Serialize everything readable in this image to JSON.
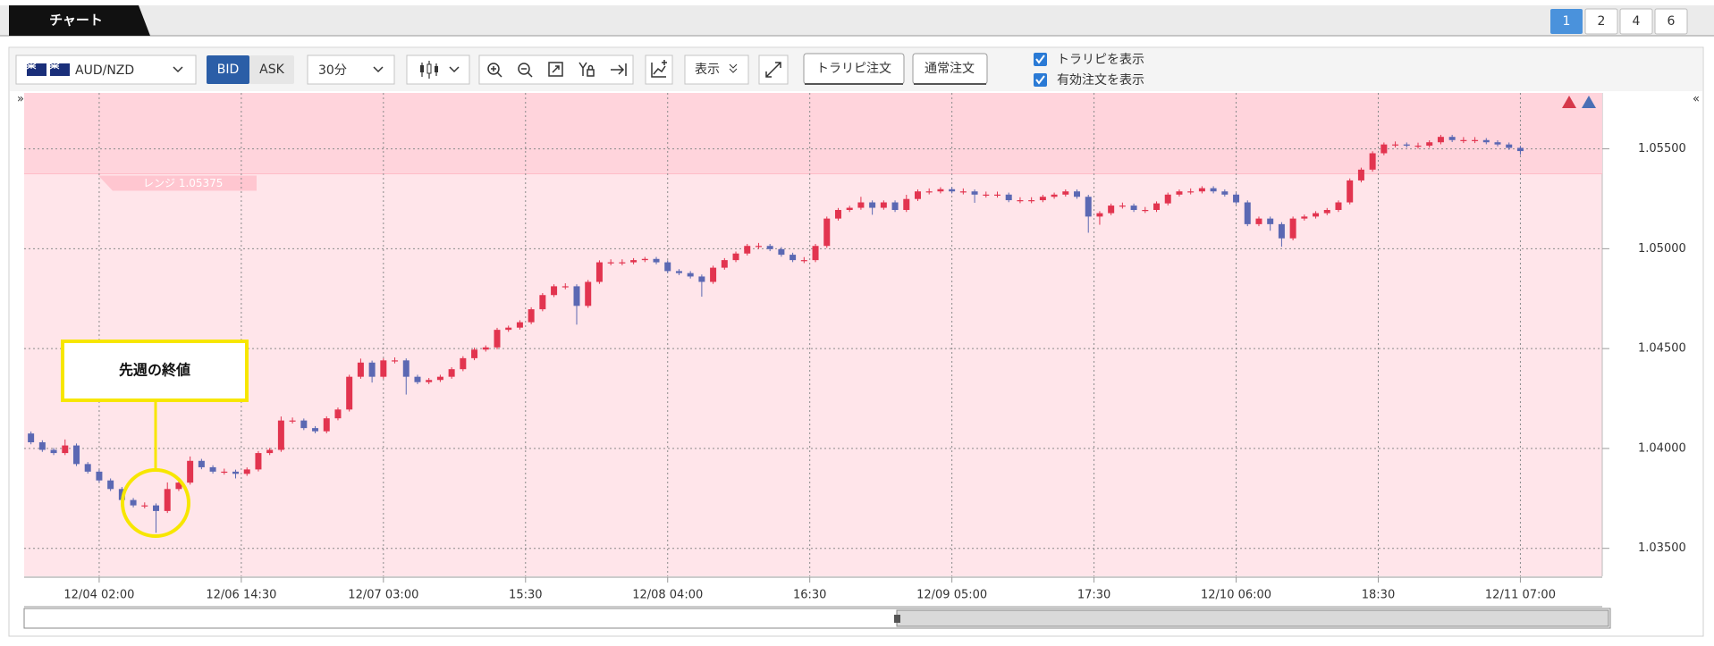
{
  "tabs": {
    "active": "チャート",
    "pages": [
      "1",
      "2",
      "4",
      "6"
    ]
  },
  "toolbar": {
    "symbol": "AUD/NZD",
    "bid": "BID",
    "ask": "ASK",
    "timeframe": "30分",
    "display": "表示",
    "buttons": [
      "トラリピ注文",
      "通常注文"
    ],
    "checkboxes": [
      "トラリピを表示",
      "有効注文を表示"
    ]
  },
  "chart_data": {
    "type": "candlestick",
    "x": [
      -6,
      -5,
      -4,
      -3,
      -2,
      -1,
      0,
      1,
      2,
      3,
      4,
      5,
      6,
      7,
      8,
      9,
      10,
      11,
      12,
      13,
      14,
      15,
      16,
      17,
      18,
      19,
      20,
      21,
      22,
      23,
      24,
      25,
      26,
      27,
      28,
      29,
      30,
      31,
      32,
      33,
      34,
      35,
      36,
      37,
      38,
      39,
      40,
      41,
      42,
      43,
      44,
      45,
      46,
      47,
      48,
      49,
      50,
      51,
      52,
      53,
      54,
      55,
      56,
      57,
      58,
      59,
      60,
      61,
      62,
      63,
      64,
      65,
      66,
      67,
      68,
      69,
      70,
      71,
      72,
      73,
      74,
      75,
      76,
      77,
      78,
      79,
      80,
      81,
      82,
      83,
      84,
      85,
      86,
      87,
      88,
      89,
      90,
      91,
      92,
      93,
      94,
      95,
      96,
      97,
      98,
      99,
      100,
      101,
      102,
      103,
      104,
      105,
      106,
      107,
      108,
      109,
      110,
      111,
      112,
      113,
      114,
      115,
      116,
      117,
      118,
      119,
      120,
      121,
      122,
      123,
      124,
      125
    ],
    "open": [
      1.04075,
      1.04031,
      1.03993,
      1.03977,
      1.04015,
      1.03922,
      1.03884,
      1.0384,
      1.03797,
      1.03742,
      1.03715,
      1.03715,
      1.03687,
      1.03797,
      1.03829,
      1.03938,
      1.03906,
      1.03884,
      1.03884,
      1.03873,
      1.03895,
      1.03977,
      1.03993,
      1.0414,
      1.0414,
      1.04102,
      1.04086,
      1.04151,
      1.04195,
      1.04359,
      1.0443,
      1.04359,
      1.04441,
      1.04441,
      1.04359,
      1.04332,
      1.04343,
      1.04359,
      1.04397,
      1.04452,
      1.04495,
      1.04506,
      1.04594,
      1.04605,
      1.04632,
      1.04697,
      1.04768,
      1.04812,
      1.04812,
      1.04714,
      1.04834,
      1.04932,
      1.04932,
      1.04932,
      1.04943,
      1.04949,
      1.04932,
      1.04888,
      1.04878,
      1.04861,
      1.04834,
      1.04905,
      1.04943,
      1.04976,
      1.05014,
      1.05014,
      1.04998,
      1.0497,
      1.04943,
      1.04943,
      1.05014,
      1.05151,
      1.05194,
      1.05205,
      1.05232,
      1.05205,
      1.05232,
      1.05194,
      1.05249,
      1.05287,
      1.05287,
      1.05298,
      1.05287,
      1.05287,
      1.05271,
      1.05271,
      1.05271,
      1.05243,
      1.05243,
      1.05243,
      1.0526,
      1.05271,
      1.05287,
      1.0526,
      1.05161,
      1.05178,
      1.05216,
      1.05216,
      1.05194,
      1.05194,
      1.05227,
      1.05271,
      1.05287,
      1.05287,
      1.05303,
      1.05287,
      1.05271,
      1.05232,
      1.05123,
      1.05151,
      1.05123,
      1.05052,
      1.05151,
      1.05161,
      1.05178,
      1.05194,
      1.05232,
      1.05342,
      1.05396,
      1.05478,
      1.05522,
      1.05522,
      1.05516,
      1.05516,
      1.05533,
      1.0556,
      1.05544,
      1.05544,
      1.05544,
      1.05533,
      1.05522,
      1.05505
    ],
    "high": [
      1.04085,
      1.04041,
      1.04003,
      1.04045,
      1.04025,
      1.03932,
      1.03894,
      1.0385,
      1.03807,
      1.03752,
      1.0373,
      1.03725,
      1.0383,
      1.03839,
      1.0396,
      1.03948,
      1.03916,
      1.03899,
      1.03894,
      1.03905,
      1.03987,
      1.04003,
      1.0416,
      1.04155,
      1.0415,
      1.04112,
      1.04161,
      1.04205,
      1.04369,
      1.0445,
      1.0444,
      1.04451,
      1.04456,
      1.04451,
      1.04369,
      1.04353,
      1.04369,
      1.04407,
      1.04462,
      1.04505,
      1.04516,
      1.04604,
      1.04615,
      1.04642,
      1.04707,
      1.04778,
      1.04822,
      1.04827,
      1.04822,
      1.04844,
      1.04942,
      1.04947,
      1.04947,
      1.04953,
      1.04959,
      1.04959,
      1.04942,
      1.04898,
      1.04888,
      1.04871,
      1.04915,
      1.04953,
      1.04986,
      1.05024,
      1.05029,
      1.05024,
      1.05008,
      1.0498,
      1.04958,
      1.05024,
      1.05161,
      1.05204,
      1.05215,
      1.0526,
      1.05242,
      1.05242,
      1.05242,
      1.0527,
      1.05297,
      1.05302,
      1.05308,
      1.05308,
      1.05302,
      1.05297,
      1.05286,
      1.05286,
      1.05281,
      1.05258,
      1.05258,
      1.0527,
      1.05281,
      1.05297,
      1.05297,
      1.0527,
      1.05188,
      1.05226,
      1.05231,
      1.05226,
      1.05209,
      1.05237,
      1.05281,
      1.05297,
      1.05302,
      1.05313,
      1.05313,
      1.05297,
      1.05281,
      1.05242,
      1.05161,
      1.05161,
      1.05133,
      1.05161,
      1.05171,
      1.05188,
      1.05204,
      1.05242,
      1.05352,
      1.05406,
      1.05488,
      1.05532,
      1.05537,
      1.05532,
      1.05531,
      1.05543,
      1.0557,
      1.0557,
      1.05559,
      1.05559,
      1.05554,
      1.05543,
      1.05532,
      1.05515
    ],
    "low": [
      1.04021,
      1.03983,
      1.03967,
      1.03967,
      1.03912,
      1.03874,
      1.0383,
      1.03787,
      1.03732,
      1.03705,
      1.037,
      1.03578,
      1.03677,
      1.03787,
      1.03819,
      1.03896,
      1.03874,
      1.03869,
      1.0385,
      1.03863,
      1.03885,
      1.03967,
      1.03983,
      1.04125,
      1.04092,
      1.04076,
      1.04076,
      1.04141,
      1.04185,
      1.04349,
      1.0433,
      1.04349,
      1.04426,
      1.0427,
      1.04322,
      1.04322,
      1.04333,
      1.04349,
      1.04387,
      1.04442,
      1.04485,
      1.04496,
      1.04584,
      1.04595,
      1.04622,
      1.04687,
      1.04758,
      1.04797,
      1.0462,
      1.04704,
      1.04824,
      1.04917,
      1.04917,
      1.04922,
      1.04933,
      1.04922,
      1.04878,
      1.04868,
      1.04851,
      1.0476,
      1.04824,
      1.04895,
      1.04933,
      1.04966,
      1.04999,
      1.04988,
      1.0496,
      1.04933,
      1.04928,
      1.04933,
      1.05004,
      1.05141,
      1.05184,
      1.05195,
      1.0517,
      1.05195,
      1.05184,
      1.05184,
      1.05239,
      1.05272,
      1.05277,
      1.05277,
      1.05272,
      1.0523,
      1.05256,
      1.05256,
      1.05233,
      1.05228,
      1.05228,
      1.05233,
      1.0525,
      1.05261,
      1.0525,
      1.0508,
      1.0512,
      1.05168,
      1.05201,
      1.05184,
      1.05179,
      1.05184,
      1.05217,
      1.05261,
      1.05272,
      1.05277,
      1.05277,
      1.05261,
      1.05222,
      1.05113,
      1.05113,
      1.0509,
      1.0501,
      1.05042,
      1.05141,
      1.05151,
      1.05168,
      1.05184,
      1.05222,
      1.05332,
      1.05386,
      1.05468,
      1.05507,
      1.05506,
      1.05501,
      1.05506,
      1.05523,
      1.05534,
      1.05529,
      1.05529,
      1.05523,
      1.05512,
      1.05495,
      1.0547
    ],
    "close": [
      1.04031,
      1.03993,
      1.03977,
      1.04015,
      1.03922,
      1.03884,
      1.0384,
      1.03797,
      1.03742,
      1.03715,
      1.03715,
      1.03687,
      1.03797,
      1.03829,
      1.03938,
      1.03906,
      1.03884,
      1.03884,
      1.03873,
      1.03895,
      1.03977,
      1.03993,
      1.0414,
      1.0414,
      1.04102,
      1.04086,
      1.04151,
      1.04195,
      1.04359,
      1.0443,
      1.04359,
      1.04441,
      1.04441,
      1.04359,
      1.04332,
      1.04343,
      1.04359,
      1.04397,
      1.04452,
      1.04495,
      1.04506,
      1.04594,
      1.04605,
      1.04632,
      1.04697,
      1.04768,
      1.04812,
      1.04812,
      1.04714,
      1.04834,
      1.04932,
      1.04932,
      1.04932,
      1.04943,
      1.04949,
      1.04932,
      1.04888,
      1.04878,
      1.04861,
      1.04834,
      1.04905,
      1.04943,
      1.04976,
      1.05014,
      1.05014,
      1.04998,
      1.0497,
      1.04943,
      1.04943,
      1.05014,
      1.05151,
      1.05194,
      1.05205,
      1.05232,
      1.05205,
      1.05232,
      1.05194,
      1.05249,
      1.05287,
      1.05287,
      1.05298,
      1.05287,
      1.05287,
      1.05271,
      1.05271,
      1.05271,
      1.05243,
      1.05243,
      1.05243,
      1.0526,
      1.05271,
      1.05287,
      1.0526,
      1.05161,
      1.05178,
      1.05216,
      1.05216,
      1.05194,
      1.05194,
      1.05227,
      1.05271,
      1.05287,
      1.05287,
      1.05303,
      1.05287,
      1.05271,
      1.05232,
      1.05123,
      1.05151,
      1.05123,
      1.05052,
      1.05151,
      1.05161,
      1.05178,
      1.05194,
      1.05232,
      1.05342,
      1.05396,
      1.05478,
      1.05522,
      1.05522,
      1.05516,
      1.05516,
      1.05533,
      1.0556,
      1.05544,
      1.05544,
      1.05544,
      1.05533,
      1.05522,
      1.05505,
      1.05489
    ],
    "up_color": "#e2344f",
    "down_color": "#5b68b3",
    "xlim": [
      -6.6,
      132.2
    ],
    "xticks": [
      {
        "value": 0,
        "label": "12/04 02:00"
      },
      {
        "value": 12.5,
        "label": "12/06 14:30"
      },
      {
        "value": 25,
        "label": "12/07 03:00"
      },
      {
        "value": 37.5,
        "label": "15:30"
      },
      {
        "value": 50,
        "label": "12/08 04:00"
      },
      {
        "value": 62.5,
        "label": "16:30"
      },
      {
        "value": 75,
        "label": "12/09 05:00"
      },
      {
        "value": 87.5,
        "label": "17:30"
      },
      {
        "value": 100,
        "label": "12/10 06:00"
      },
      {
        "value": 112.5,
        "label": "18:30"
      },
      {
        "value": 125,
        "label": "12/11 07:00"
      }
    ],
    "ylim": [
      1.0336,
      1.0578
    ],
    "yticks": [
      {
        "value": 1.035,
        "label": "1.03500"
      },
      {
        "value": 1.04,
        "label": "1.04000"
      },
      {
        "value": 1.045,
        "label": "1.04500"
      },
      {
        "value": 1.05,
        "label": "1.05000"
      },
      {
        "value": 1.055,
        "label": "1.05500"
      }
    ],
    "grid": true,
    "range_band": {
      "value": 1.05375,
      "label": "レンジ 1.05375"
    },
    "annotations": [
      "先週の終値"
    ]
  }
}
